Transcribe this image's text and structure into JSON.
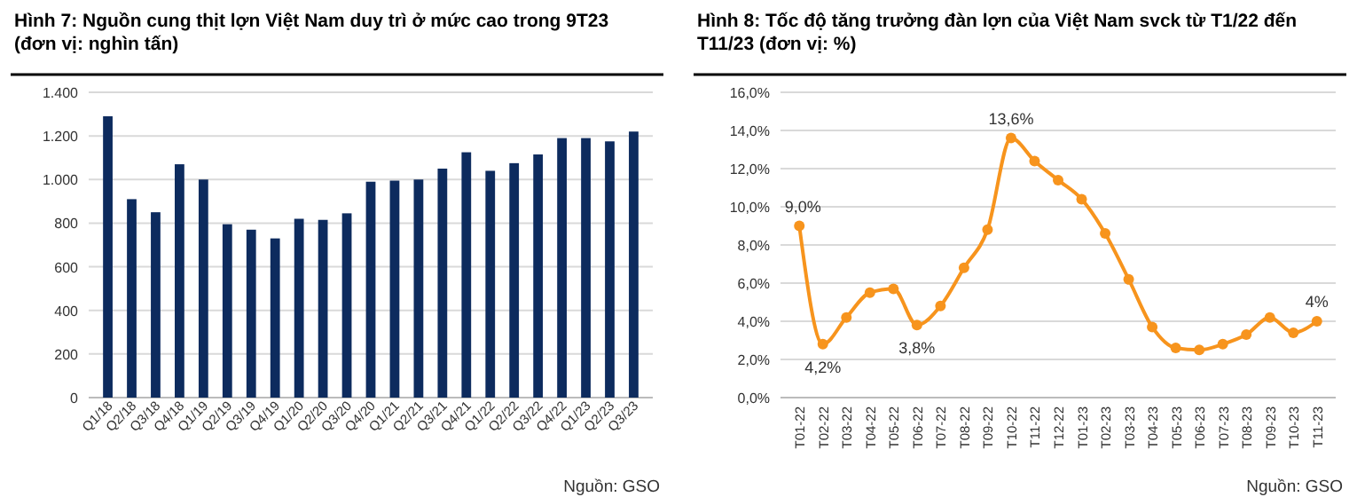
{
  "chart_data": [
    {
      "type": "bar",
      "title": "Hình 7: Nguồn cung thịt lợn Việt Nam duy trì ở mức cao trong 9T23\n(đơn vị: nghìn tấn)",
      "categories": [
        "Q1/18",
        "Q2/18",
        "Q3/18",
        "Q4/18",
        "Q1/19",
        "Q2/19",
        "Q3/19",
        "Q4/19",
        "Q1/20",
        "Q2/20",
        "Q3/20",
        "Q4/20",
        "Q1/21",
        "Q2/21",
        "Q3/21",
        "Q4/21",
        "Q1/22",
        "Q2/22",
        "Q3/22",
        "Q4/22",
        "Q1/23",
        "Q2/23",
        "Q3/23"
      ],
      "values": [
        1290,
        910,
        850,
        1070,
        1000,
        795,
        770,
        730,
        820,
        815,
        845,
        990,
        995,
        1000,
        1050,
        1125,
        1040,
        1075,
        1115,
        1190,
        1190,
        1175,
        1220
      ],
      "color": "#0d2b5e",
      "ylim": [
        0,
        1400
      ],
      "yticks": [
        {
          "value": 0,
          "label": "0"
        },
        {
          "value": 200,
          "label": "200"
        },
        {
          "value": 400,
          "label": "400"
        },
        {
          "value": 600,
          "label": "600"
        },
        {
          "value": 800,
          "label": "800"
        },
        {
          "value": 1000,
          "label": "1.000"
        },
        {
          "value": 1200,
          "label": "1.200"
        },
        {
          "value": 1400,
          "label": "1.400"
        }
      ],
      "grid": "y",
      "annotations": [
        "Nguồn: GSO"
      ]
    },
    {
      "type": "line",
      "title": "Hình 8: Tốc độ tăng trưởng đàn lợn của Việt Nam svck từ T1/22 đến\nT11/23 (đơn vị: %)",
      "categories": [
        "T01-22",
        "T02-22",
        "T03-22",
        "T04-22",
        "T05-22",
        "T06-22",
        "T07-22",
        "T08-22",
        "T09-22",
        "T10-22",
        "T11-22",
        "T12-22",
        "T01-23",
        "T02-23",
        "T03-23",
        "T04-23",
        "T05-23",
        "T06-23",
        "T07-23",
        "T08-23",
        "T09-23",
        "T10-23",
        "T11-23"
      ],
      "values": [
        9.0,
        2.8,
        4.2,
        5.5,
        5.7,
        3.8,
        4.8,
        6.8,
        8.8,
        13.6,
        12.4,
        11.4,
        10.4,
        8.6,
        6.2,
        3.7,
        2.6,
        2.5,
        2.8,
        3.3,
        4.2,
        3.4,
        4.0
      ],
      "color": "#f7941d",
      "marker": "circle",
      "ylim": [
        0,
        16
      ],
      "yticks": [
        {
          "value": 0,
          "label": "0,0%"
        },
        {
          "value": 2,
          "label": "2,0%"
        },
        {
          "value": 4,
          "label": "4,0%"
        },
        {
          "value": 6,
          "label": "6,0%"
        },
        {
          "value": 8,
          "label": "8,0%"
        },
        {
          "value": 10,
          "label": "10,0%"
        },
        {
          "value": 12,
          "label": "12,0%"
        },
        {
          "value": 14,
          "label": "14,0%"
        },
        {
          "value": 16,
          "label": "16,0%"
        }
      ],
      "grid": "y",
      "annotations": [
        {
          "text": "9,0%",
          "x": "T01-22",
          "y": 9.0
        },
        {
          "text": "4,2%",
          "x": "T02-22",
          "y": 2.8
        },
        {
          "text": "3,8%",
          "x": "T06-22",
          "y": 3.8
        },
        {
          "text": "13,6%",
          "x": "T10-22",
          "y": 13.6
        },
        {
          "text": "4%",
          "x": "T11-23",
          "y": 4.0
        },
        "Nguồn: GSO"
      ]
    }
  ]
}
